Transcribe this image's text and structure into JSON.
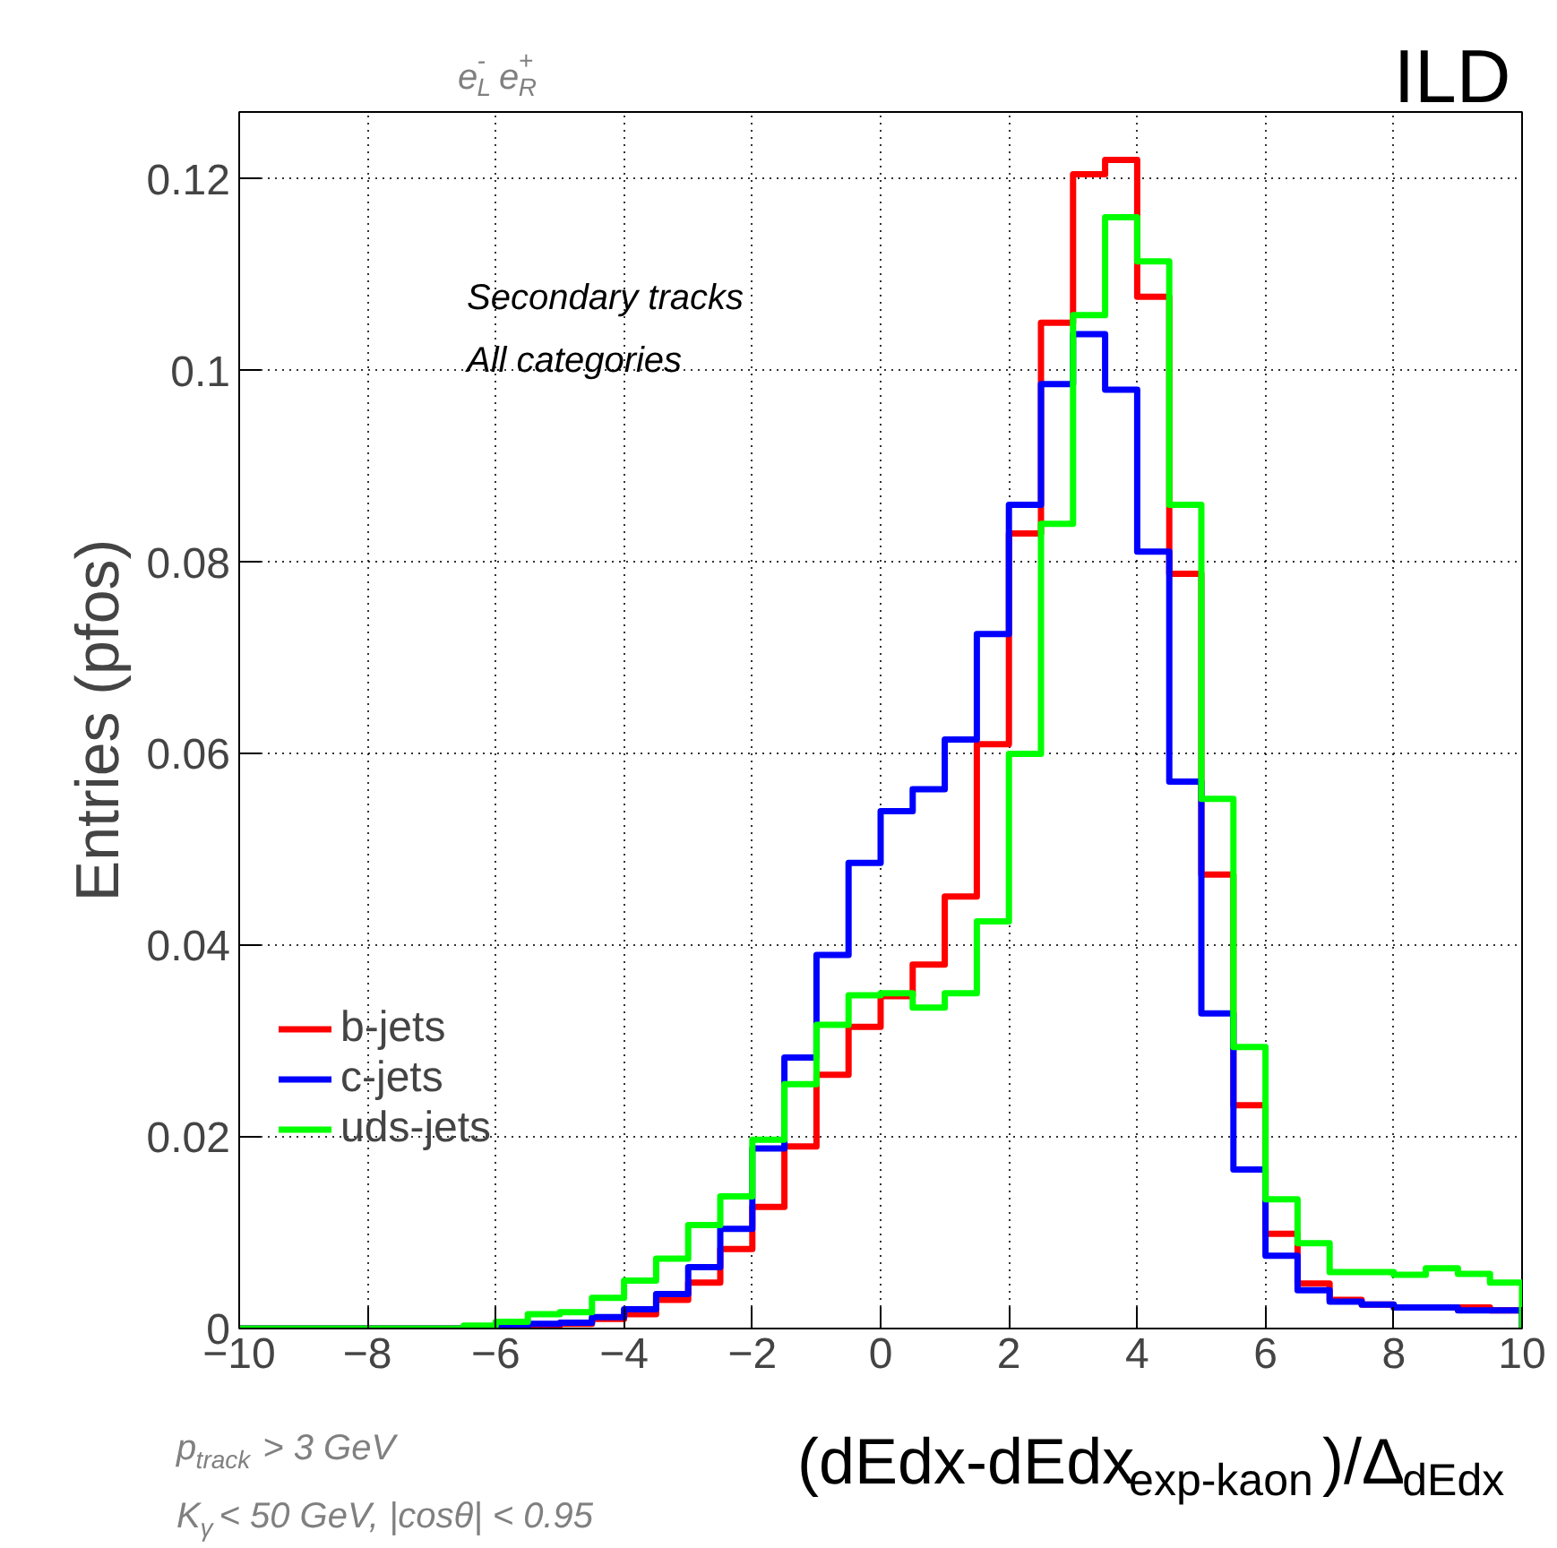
{
  "chart_data": {
    "type": "histogram",
    "title": "ILD",
    "subtitle": "e$_{L}$$^{-}$e$_{R}$$^{+}$",
    "xlabel": "(dEdx-dEdx$_{exp-kaon}$)/Δ$_{dEdx}$",
    "ylabel": "Entries (pfos)",
    "annotations": [
      "Secondary tracks",
      "All categories",
      "p$_{track}$ > 3 GeV",
      "K$_{γ}$ < 50 GeV, |cosθ| < 0.95"
    ],
    "bins": [
      -10,
      -9.5,
      -9,
      -8.5,
      -8,
      -7.5,
      -7,
      -6.5,
      -6,
      -5.5,
      -5,
      -4.5,
      -4,
      -3.5,
      -3,
      -2.5,
      -2,
      -1.5,
      -1,
      -0.5,
      0,
      0.5,
      1,
      1.5,
      2,
      2.5,
      3,
      3.5,
      4,
      4.5,
      5,
      5.5,
      6,
      6.5,
      7,
      7.5,
      8,
      8.5,
      9,
      9.5,
      10
    ],
    "series": [
      {
        "name": "b-jets",
        "color": "#ff0000",
        "values": [
          0,
          0,
          0,
          0,
          0,
          0,
          0,
          0,
          0.0002,
          0.0003,
          0.0005,
          0.001,
          0.0015,
          0.003,
          0.0048,
          0.0083,
          0.0127,
          0.019,
          0.0265,
          0.0315,
          0.0347,
          0.038,
          0.0451,
          0.061,
          0.083,
          0.105,
          0.1205,
          0.122,
          0.1077,
          0.0788,
          0.0474,
          0.0233,
          0.0099,
          0.0047,
          0.003,
          0.0025,
          0.0022,
          0.0022,
          0.0022,
          0.0019
        ]
      },
      {
        "name": "c-jets",
        "color": "#0000ff",
        "values": [
          0,
          0,
          0,
          0,
          0,
          0,
          0,
          0,
          0.0002,
          0.0005,
          0.0006,
          0.0012,
          0.002,
          0.0036,
          0.0064,
          0.0104,
          0.0188,
          0.0283,
          0.039,
          0.0486,
          0.054,
          0.0563,
          0.0615,
          0.0725,
          0.086,
          0.0986,
          0.1038,
          0.098,
          0.0811,
          0.0571,
          0.0329,
          0.0166,
          0.0076,
          0.004,
          0.0028,
          0.0025,
          0.0022,
          0.0022,
          0.0019,
          0.0019
        ]
      },
      {
        "name": "uds-jets",
        "color": "#00ff00",
        "values": [
          0,
          0,
          0,
          0,
          0,
          0,
          0,
          0.0003,
          0.0007,
          0.0015,
          0.0017,
          0.0032,
          0.005,
          0.0073,
          0.0108,
          0.0138,
          0.0197,
          0.0255,
          0.0317,
          0.0348,
          0.035,
          0.0335,
          0.035,
          0.0425,
          0.06,
          0.084,
          0.1058,
          0.116,
          0.1114,
          0.086,
          0.0553,
          0.0294,
          0.0135,
          0.0089,
          0.0059,
          0.0059,
          0.0056,
          0.0063,
          0.0057,
          0.0048
        ]
      }
    ],
    "xlim": [
      -10,
      10
    ],
    "ylim": [
      0,
      0.127
    ],
    "xticks": [
      -10,
      -8,
      -6,
      -4,
      -2,
      0,
      2,
      4,
      6,
      8,
      10
    ],
    "yticks": [
      0,
      0.02,
      0.04,
      0.06,
      0.08,
      0.1,
      0.12
    ],
    "grid": true,
    "legend": "bottom left",
    "line_style": "solid"
  }
}
